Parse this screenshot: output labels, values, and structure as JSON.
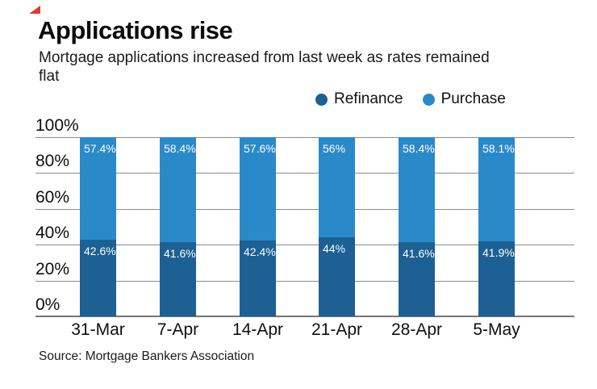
{
  "brand": {
    "accent_color": "#e03b2f"
  },
  "chart_data": {
    "type": "bar",
    "stacked": true,
    "title": "Applications rise",
    "subtitle": "Mortgage applications increased from last week as rates remained flat",
    "source": "Source: Mortgage Bankers Association",
    "categories": [
      "31-Mar",
      "7-Apr",
      "14-Apr",
      "21-Apr",
      "28-Apr",
      "5-May"
    ],
    "series": [
      {
        "name": "Refinance",
        "color": "#1c6094",
        "values": [
          42.6,
          41.6,
          42.4,
          44,
          41.6,
          41.9
        ],
        "labels": [
          "42.6%",
          "41.6%",
          "42.4%",
          "44%",
          "41.6%",
          "41.9%"
        ]
      },
      {
        "name": "Purchase",
        "color": "#2a8ac9",
        "values": [
          57.4,
          58.4,
          57.6,
          56,
          58.4,
          58.1
        ],
        "labels": [
          "57.4%",
          "58.4%",
          "57.6%",
          "56%",
          "58.4%",
          "58.1%"
        ]
      }
    ],
    "ylim": [
      0,
      100
    ],
    "yticks": [
      {
        "pct": 0,
        "label": "0%"
      },
      {
        "pct": 20,
        "label": "20%"
      },
      {
        "pct": 40,
        "label": "40%"
      },
      {
        "pct": 60,
        "label": "60%"
      },
      {
        "pct": 80,
        "label": "80%"
      },
      {
        "pct": 100,
        "label": "100%"
      }
    ],
    "grid": true,
    "legend_position": "top-right",
    "bar_label_color": "#ffffff"
  }
}
